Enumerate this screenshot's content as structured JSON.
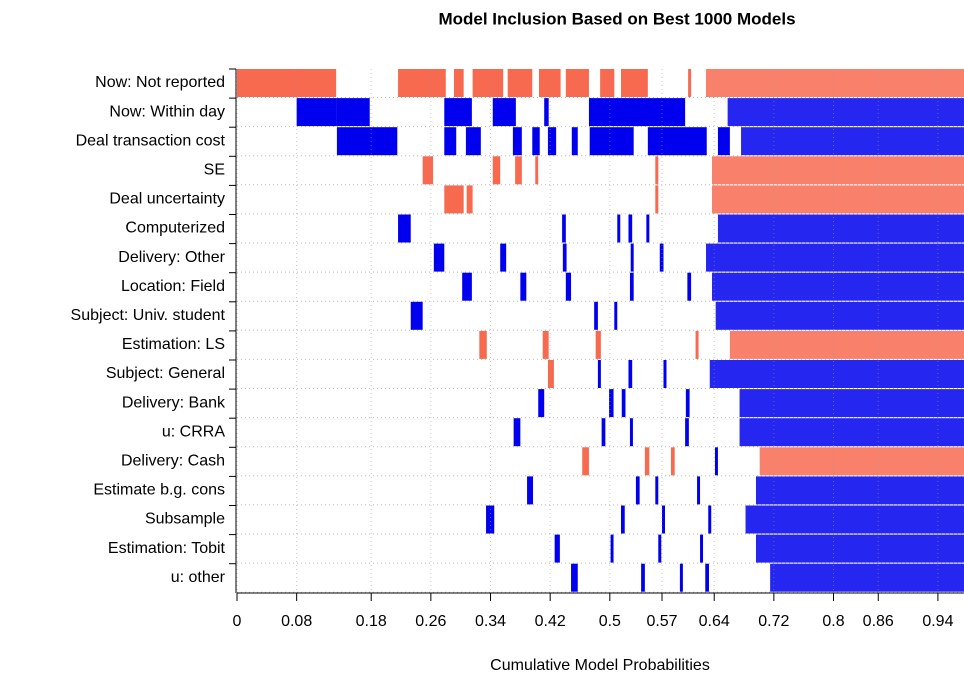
{
  "chart_data": {
    "type": "inclusion",
    "title": "Model Inclusion Based on Best  1000  Models",
    "xlabel": "Cumulative Model Probabilities",
    "xlim": [
      0,
      0.975
    ],
    "xticks": [
      0,
      0.08,
      0.18,
      0.26,
      0.34,
      0.42,
      0.5,
      0.57,
      0.64,
      0.72,
      0.8,
      0.86,
      0.94
    ],
    "positive_color": "#0000ee",
    "negative_color": "#f86a50",
    "variables": [
      "Now: Not reported",
      "Now: Within day",
      "Deal transaction cost",
      "SE",
      "Deal uncertainty",
      "Computerized",
      "Delivery: Other",
      "Location: Field",
      "Subject: Univ. student",
      "Estimation: LS",
      "Subject: General",
      "Delivery: Bank",
      "u: CRRA",
      "Delivery: Cash",
      "Estimate b.g. cons",
      "Subsample",
      "Estimation: Tobit",
      "u: other"
    ],
    "segments": [
      [
        [
          0,
          0.133,
          -1
        ],
        [
          0.216,
          0.28,
          -1
        ],
        [
          0.291,
          0.304,
          -1
        ],
        [
          0.316,
          0.357,
          -1
        ],
        [
          0.363,
          0.396,
          -1
        ],
        [
          0.405,
          0.434,
          -1
        ],
        [
          0.441,
          0.472,
          -1
        ],
        [
          0.487,
          0.506,
          -1
        ],
        [
          0.515,
          0.551,
          -1
        ],
        [
          0.605,
          0.609,
          -1
        ],
        [
          0.629,
          0.975,
          -1
        ]
      ],
      [
        [
          0.08,
          0.134,
          1
        ],
        [
          0.134,
          0.178,
          1
        ],
        [
          0.278,
          0.315,
          1
        ],
        [
          0.343,
          0.374,
          1
        ],
        [
          0.412,
          0.418,
          1
        ],
        [
          0.472,
          0.601,
          1
        ],
        [
          0.658,
          0.975,
          1
        ]
      ],
      [
        [
          0.134,
          0.215,
          1
        ],
        [
          0.278,
          0.294,
          1
        ],
        [
          0.307,
          0.327,
          1
        ],
        [
          0.37,
          0.382,
          1
        ],
        [
          0.396,
          0.406,
          1
        ],
        [
          0.417,
          0.428,
          1
        ],
        [
          0.449,
          0.457,
          1
        ],
        [
          0.473,
          0.532,
          1
        ],
        [
          0.551,
          0.63,
          1
        ],
        [
          0.645,
          0.661,
          1
        ],
        [
          0.676,
          0.975,
          1
        ]
      ],
      [
        [
          0.249,
          0.263,
          -1
        ],
        [
          0.343,
          0.353,
          -1
        ],
        [
          0.373,
          0.382,
          -1
        ],
        [
          0.4,
          0.404,
          -1
        ],
        [
          0.561,
          0.565,
          -1
        ],
        [
          0.637,
          0.975,
          -1
        ]
      ],
      [
        [
          0.278,
          0.304,
          -1
        ],
        [
          0.308,
          0.316,
          -1
        ],
        [
          0.561,
          0.565,
          -1
        ],
        [
          0.637,
          0.975,
          -1
        ]
      ],
      [
        [
          0.216,
          0.233,
          1
        ],
        [
          0.436,
          0.441,
          1
        ],
        [
          0.51,
          0.514,
          1
        ],
        [
          0.525,
          0.53,
          1
        ],
        [
          0.549,
          0.553,
          1
        ],
        [
          0.645,
          0.975,
          1
        ]
      ],
      [
        [
          0.264,
          0.278,
          1
        ],
        [
          0.353,
          0.361,
          1
        ],
        [
          0.437,
          0.442,
          1
        ],
        [
          0.528,
          0.532,
          1
        ],
        [
          0.567,
          0.572,
          1
        ],
        [
          0.629,
          0.975,
          1
        ]
      ],
      [
        [
          0.302,
          0.315,
          1
        ],
        [
          0.38,
          0.388,
          1
        ],
        [
          0.441,
          0.448,
          1
        ],
        [
          0.527,
          0.532,
          1
        ],
        [
          0.604,
          0.609,
          1
        ],
        [
          0.637,
          0.975,
          1
        ]
      ],
      [
        [
          0.233,
          0.249,
          1
        ],
        [
          0.479,
          0.484,
          1
        ],
        [
          0.506,
          0.51,
          1
        ],
        [
          0.642,
          0.975,
          1
        ]
      ],
      [
        [
          0.325,
          0.335,
          -1
        ],
        [
          0.41,
          0.418,
          -1
        ],
        [
          0.481,
          0.488,
          -1
        ],
        [
          0.615,
          0.619,
          -1
        ],
        [
          0.661,
          0.975,
          -1
        ]
      ],
      [
        [
          0.417,
          0.425,
          -1
        ],
        [
          0.484,
          0.488,
          1
        ],
        [
          0.525,
          0.53,
          1
        ],
        [
          0.572,
          0.576,
          1
        ],
        [
          0.634,
          0.975,
          1
        ]
      ],
      [
        [
          0.404,
          0.412,
          1
        ],
        [
          0.499,
          0.505,
          1
        ],
        [
          0.516,
          0.521,
          1
        ],
        [
          0.602,
          0.607,
          1
        ],
        [
          0.674,
          0.975,
          1
        ]
      ],
      [
        [
          0.371,
          0.38,
          1
        ],
        [
          0.489,
          0.494,
          1
        ],
        [
          0.527,
          0.531,
          1
        ],
        [
          0.601,
          0.606,
          1
        ],
        [
          0.674,
          0.975,
          1
        ]
      ],
      [
        [
          0.463,
          0.472,
          -1
        ],
        [
          0.547,
          0.553,
          -1
        ],
        [
          0.582,
          0.587,
          -1
        ],
        [
          0.641,
          0.645,
          1
        ],
        [
          0.701,
          0.975,
          -1
        ]
      ],
      [
        [
          0.389,
          0.397,
          1
        ],
        [
          0.535,
          0.54,
          1
        ],
        [
          0.561,
          0.565,
          1
        ],
        [
          0.617,
          0.621,
          1
        ],
        [
          0.696,
          0.975,
          1
        ]
      ],
      [
        [
          0.334,
          0.345,
          1
        ],
        [
          0.515,
          0.52,
          1
        ],
        [
          0.57,
          0.574,
          1
        ],
        [
          0.632,
          0.636,
          1
        ],
        [
          0.682,
          0.975,
          1
        ]
      ],
      [
        [
          0.426,
          0.433,
          1
        ],
        [
          0.501,
          0.505,
          1
        ],
        [
          0.565,
          0.569,
          1
        ],
        [
          0.621,
          0.625,
          1
        ],
        [
          0.696,
          0.975,
          1
        ]
      ],
      [
        [
          0.448,
          0.457,
          1
        ],
        [
          0.542,
          0.547,
          1
        ],
        [
          0.594,
          0.598,
          1
        ],
        [
          0.628,
          0.633,
          1
        ],
        [
          0.715,
          0.975,
          1
        ]
      ]
    ]
  }
}
